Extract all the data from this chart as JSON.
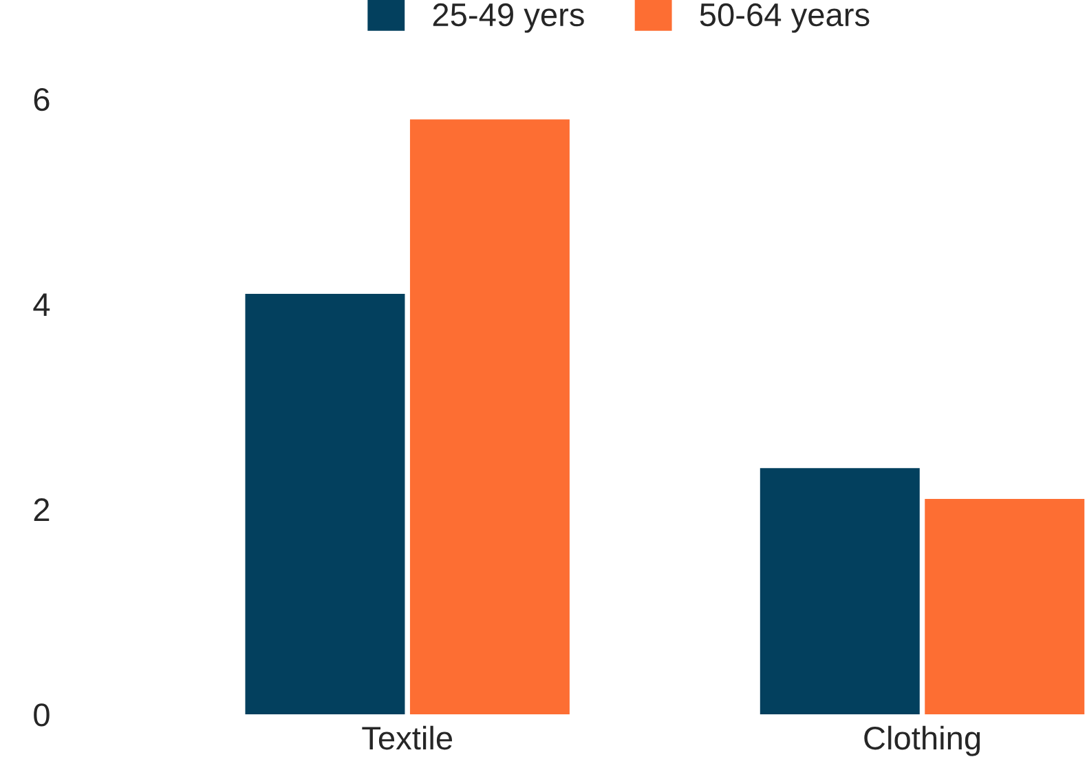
{
  "chart_data": {
    "type": "bar",
    "categories": [
      "Textile",
      "Clothing"
    ],
    "series": [
      {
        "name": "25-49 yers",
        "color": "#03405e",
        "values": [
          4.1,
          2.4
        ]
      },
      {
        "name": "50-64 years",
        "color": "#fd6e33",
        "values": [
          5.8,
          2.1
        ]
      }
    ],
    "ylim": [
      0,
      6
    ],
    "yticks": [
      0,
      2,
      4,
      6
    ],
    "grid": false,
    "legend": "top"
  }
}
